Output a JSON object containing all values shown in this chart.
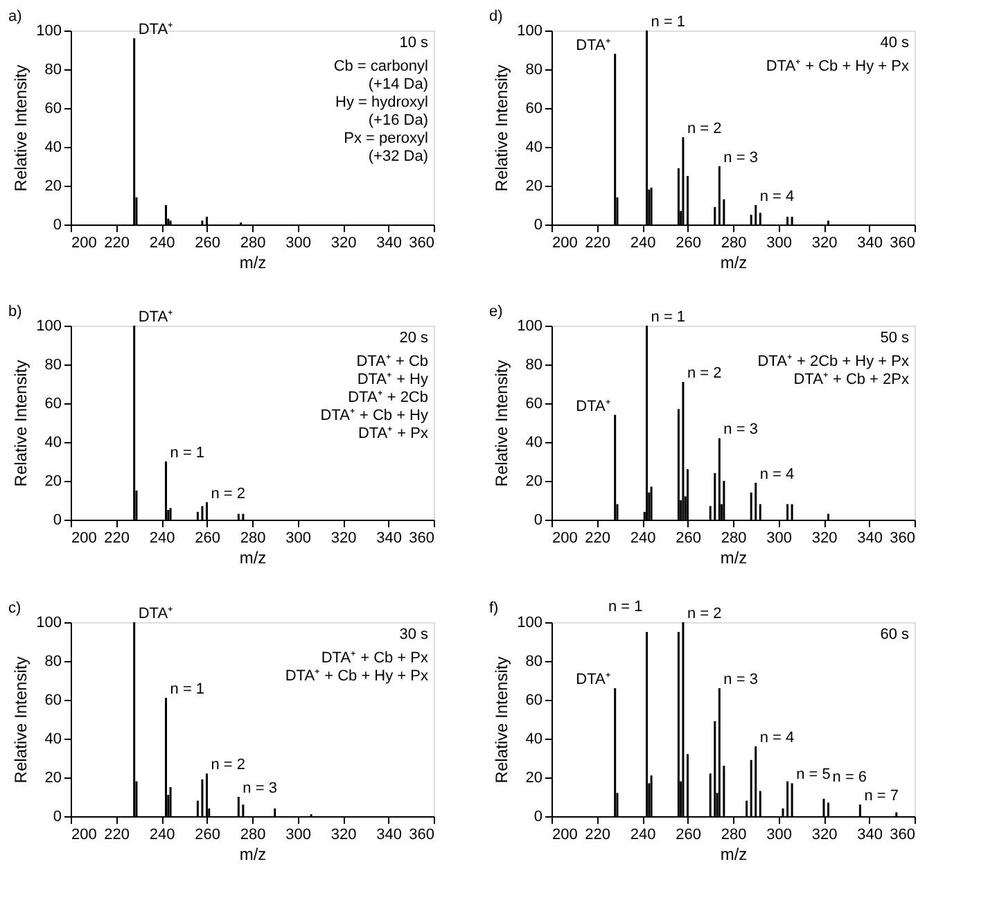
{
  "chart_data": [
    {
      "type": "bar",
      "title": "a)",
      "subtitle": "10 s",
      "xlabel": "m/z",
      "ylabel": "Relative Intensity",
      "color": "#000000",
      "xlim": [
        200,
        360
      ],
      "ylim": [
        0,
        100
      ],
      "xticks": [
        200,
        220,
        240,
        260,
        280,
        300,
        320,
        340,
        360
      ],
      "yticks": [
        0,
        20,
        40,
        60,
        80,
        100
      ],
      "grid": false,
      "x": [
        228,
        229,
        242,
        243,
        244,
        258,
        260,
        275
      ],
      "values": [
        96,
        14,
        10,
        3,
        2,
        2,
        4,
        1
      ],
      "annotations": [
        {
          "text": "DTA⁺",
          "x": 228,
          "y": 96
        },
        "Cb = carbonyl",
        "(+14 Da)",
        "Hy = hydroxyl",
        "(+16 Da)",
        "Px = peroxyl",
        "(+32 Da)"
      ]
    },
    {
      "type": "bar",
      "title": "d)",
      "subtitle": "40 s",
      "xlabel": "m/z",
      "ylabel": "Relative Intensity",
      "color": "#000000",
      "xlim": [
        200,
        360
      ],
      "ylim": [
        0,
        100
      ],
      "xticks": [
        200,
        220,
        240,
        260,
        280,
        300,
        320,
        340,
        360
      ],
      "yticks": [
        0,
        20,
        40,
        60,
        80,
        100
      ],
      "grid": false,
      "x": [
        228,
        229,
        242,
        243,
        244,
        256,
        257,
        258,
        260,
        272,
        274,
        276,
        288,
        290,
        292,
        304,
        306,
        322
      ],
      "values": [
        88,
        14,
        100,
        18,
        19,
        29,
        7,
        45,
        25,
        9,
        30,
        13,
        5,
        10,
        6,
        4,
        4,
        2
      ],
      "annotations": [
        {
          "text": "DTA⁺",
          "x": 228,
          "y": 88
        },
        {
          "text": "n = 1",
          "x": 242,
          "y": 100
        },
        "DTA⁺ + Cb + Hy + Px",
        {
          "text": "n = 2",
          "x": 258,
          "y": 45
        },
        {
          "text": "n = 3",
          "x": 274,
          "y": 30
        },
        {
          "text": "n = 4",
          "x": 290,
          "y": 10
        }
      ]
    },
    {
      "type": "bar",
      "title": "b)",
      "subtitle": "20 s",
      "xlabel": "m/z",
      "ylabel": "Relative Intensity",
      "color": "#000000",
      "xlim": [
        200,
        360
      ],
      "ylim": [
        0,
        100
      ],
      "xticks": [
        200,
        220,
        240,
        260,
        280,
        300,
        320,
        340,
        360
      ],
      "yticks": [
        0,
        20,
        40,
        60,
        80,
        100
      ],
      "grid": false,
      "x": [
        228,
        229,
        242,
        243,
        244,
        256,
        258,
        260,
        274,
        276
      ],
      "values": [
        100,
        15,
        30,
        5,
        6,
        4,
        7,
        9,
        3,
        3
      ],
      "annotations": [
        {
          "text": "DTA⁺",
          "x": 228,
          "y": 100
        },
        "DTA⁺ + Cb",
        "DTA⁺ + Hy",
        {
          "text": "n = 1",
          "x": 242,
          "y": 30
        },
        "DTA⁺ + 2Cb",
        "DTA⁺ + Cb + Hy",
        "DTA⁺ + Px",
        {
          "text": "n = 2",
          "x": 260,
          "y": 9
        }
      ]
    },
    {
      "type": "bar",
      "title": "e)",
      "subtitle": "50 s",
      "xlabel": "m/z",
      "ylabel": "Relative Intensity",
      "color": "#000000",
      "xlim": [
        200,
        360
      ],
      "ylim": [
        0,
        100
      ],
      "xticks": [
        200,
        220,
        240,
        260,
        280,
        300,
        320,
        340,
        360
      ],
      "yticks": [
        0,
        20,
        40,
        60,
        80,
        100
      ],
      "grid": false,
      "x": [
        228,
        229,
        241,
        242,
        243,
        244,
        256,
        257,
        258,
        259,
        260,
        270,
        272,
        274,
        275,
        276,
        288,
        290,
        292,
        304,
        306,
        322
      ],
      "values": [
        54,
        8,
        4,
        100,
        14,
        17,
        57,
        10,
        71,
        12,
        26,
        7,
        24,
        42,
        8,
        20,
        14,
        19,
        8,
        8,
        8,
        3
      ],
      "annotations": [
        {
          "text": "DTA⁺",
          "x": 228,
          "y": 54
        },
        {
          "text": "n = 1",
          "x": 242,
          "y": 100
        },
        {
          "text": "n = 2",
          "x": 258,
          "y": 71
        },
        "DTA⁺ + 2Cb + Hy + Px",
        "DTA⁺ + Cb + 2Px",
        {
          "text": "n = 3",
          "x": 274,
          "y": 42
        },
        {
          "text": "n = 4",
          "x": 290,
          "y": 19
        }
      ]
    },
    {
      "type": "bar",
      "title": "c)",
      "subtitle": "30 s",
      "xlabel": "m/z",
      "ylabel": "Relative Intensity",
      "color": "#000000",
      "xlim": [
        200,
        360
      ],
      "ylim": [
        0,
        100
      ],
      "xticks": [
        200,
        220,
        240,
        260,
        280,
        300,
        320,
        340,
        360
      ],
      "yticks": [
        0,
        20,
        40,
        60,
        80,
        100
      ],
      "grid": false,
      "x": [
        228,
        229,
        242,
        243,
        244,
        256,
        258,
        260,
        261,
        274,
        276,
        290,
        306
      ],
      "values": [
        100,
        18,
        61,
        11,
        15,
        8,
        19,
        22,
        4,
        10,
        6,
        4,
        1
      ],
      "annotations": [
        {
          "text": "DTA⁺",
          "x": 228,
          "y": 100
        },
        {
          "text": "n = 1",
          "x": 242,
          "y": 61
        },
        {
          "text": "n = 2",
          "x": 260,
          "y": 22
        },
        "DTA⁺ + Cb + Px",
        "DTA⁺ + Cb + Hy + Px",
        {
          "text": "n = 3",
          "x": 274,
          "y": 10
        }
      ]
    },
    {
      "type": "bar",
      "title": "f)",
      "subtitle": "60 s",
      "xlabel": "m/z",
      "ylabel": "Relative Intensity",
      "color": "#000000",
      "xlim": [
        200,
        360
      ],
      "ylim": [
        0,
        100
      ],
      "xticks": [
        200,
        220,
        240,
        260,
        280,
        300,
        320,
        340,
        360
      ],
      "yticks": [
        0,
        20,
        40,
        60,
        80,
        100
      ],
      "grid": false,
      "x": [
        228,
        229,
        242,
        243,
        244,
        256,
        257,
        258,
        260,
        270,
        272,
        273,
        274,
        276,
        286,
        288,
        290,
        292,
        302,
        304,
        306,
        320,
        322,
        336,
        352
      ],
      "values": [
        66,
        12,
        95,
        17,
        21,
        95,
        18,
        100,
        32,
        22,
        49,
        12,
        66,
        26,
        8,
        29,
        36,
        13,
        4,
        18,
        17,
        9,
        7,
        6,
        2
      ],
      "annotations": [
        {
          "text": "n = 1",
          "x": 242,
          "y": 95
        },
        {
          "text": "n = 2",
          "x": 258,
          "y": 100
        },
        {
          "text": "DTA⁺",
          "x": 228,
          "y": 66
        },
        {
          "text": "n = 3",
          "x": 274,
          "y": 66
        },
        {
          "text": "n = 4",
          "x": 290,
          "y": 36
        },
        {
          "text": "n = 5",
          "x": 306,
          "y": 17
        },
        {
          "text": "n = 6",
          "x": 322,
          "y": 7
        },
        {
          "text": "n = 7",
          "x": 336,
          "y": 6
        }
      ]
    }
  ]
}
